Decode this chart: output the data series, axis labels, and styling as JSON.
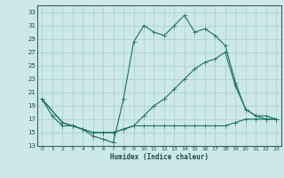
{
  "xlabel": "Humidex (Indice chaleur)",
  "bg_color": "#cce8e8",
  "grid_color": "#aacccc",
  "line_color": "#1a7060",
  "xlim": [
    -0.5,
    23.5
  ],
  "ylim": [
    13,
    34
  ],
  "yticks": [
    13,
    15,
    17,
    19,
    21,
    23,
    25,
    27,
    29,
    31,
    33
  ],
  "xticks": [
    0,
    1,
    2,
    3,
    4,
    5,
    6,
    7,
    8,
    9,
    10,
    11,
    12,
    13,
    14,
    15,
    16,
    17,
    18,
    19,
    20,
    21,
    22,
    23
  ],
  "line1_x": [
    0,
    1,
    2,
    3,
    4,
    5,
    6,
    7,
    8,
    9,
    10,
    11,
    12,
    13,
    14,
    15,
    16,
    17,
    18,
    19,
    20,
    21,
    22,
    23
  ],
  "line1_y": [
    20,
    17.5,
    16,
    16,
    15.5,
    14.5,
    14,
    13.5,
    20,
    28.5,
    31,
    30,
    29.5,
    31,
    32.5,
    30,
    30.5,
    29.5,
    28,
    22.5,
    18.5,
    17.5,
    17,
    17
  ],
  "line2_x": [
    0,
    2,
    3,
    4,
    5,
    6,
    7,
    8,
    9,
    10,
    11,
    12,
    13,
    14,
    15,
    16,
    17,
    18,
    19,
    20,
    21,
    22,
    23
  ],
  "line2_y": [
    20,
    16.5,
    16,
    15.5,
    15,
    15,
    15,
    15.5,
    16,
    17.5,
    19,
    20,
    21.5,
    23,
    24.5,
    25.5,
    26,
    27,
    22,
    18.5,
    17.5,
    17.5,
    17
  ],
  "line3_x": [
    0,
    2,
    3,
    4,
    5,
    6,
    7,
    8,
    9,
    10,
    11,
    12,
    13,
    14,
    15,
    16,
    17,
    18,
    19,
    20,
    21,
    22,
    23
  ],
  "line3_y": [
    20,
    16.5,
    16,
    15.5,
    15,
    15,
    15,
    15.5,
    16,
    16,
    16,
    16,
    16,
    16,
    16,
    16,
    16,
    16,
    16.5,
    17,
    17,
    17,
    17
  ]
}
